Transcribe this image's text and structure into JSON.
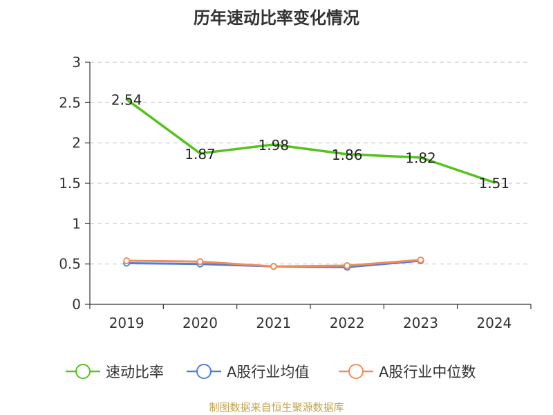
{
  "chart_data": {
    "type": "line",
    "title": "历年速动比率变化情况",
    "xlabel": "",
    "ylabel": "",
    "categories": [
      "2019",
      "2020",
      "2021",
      "2022",
      "2023",
      "2024"
    ],
    "ylim": [
      0,
      3
    ],
    "yticks": [
      0,
      0.5,
      1,
      1.5,
      2,
      2.5,
      3
    ],
    "ytick_labels": [
      "0",
      "0.5",
      "1",
      "1.5",
      "2",
      "2.5",
      "3"
    ],
    "grid": true,
    "legend_position": "bottom",
    "series": [
      {
        "name": "速动比率",
        "color": "#52c41a",
        "values": [
          2.54,
          1.87,
          1.98,
          1.86,
          1.82,
          1.51
        ],
        "data_labels": [
          "2.54",
          "1.87",
          "1.98",
          "1.86",
          "1.82",
          "1.51"
        ],
        "show_markers": false
      },
      {
        "name": "A股行业均值",
        "color": "#4e7fd6",
        "values": [
          0.51,
          0.5,
          0.47,
          0.46,
          0.54,
          null
        ],
        "show_markers": true
      },
      {
        "name": "A股行业中位数",
        "color": "#f08c5a",
        "values": [
          0.54,
          0.53,
          0.47,
          0.48,
          0.55,
          null
        ],
        "show_markers": true
      }
    ]
  },
  "footer": {
    "source": "制图数据来自恒生聚源数据库"
  }
}
